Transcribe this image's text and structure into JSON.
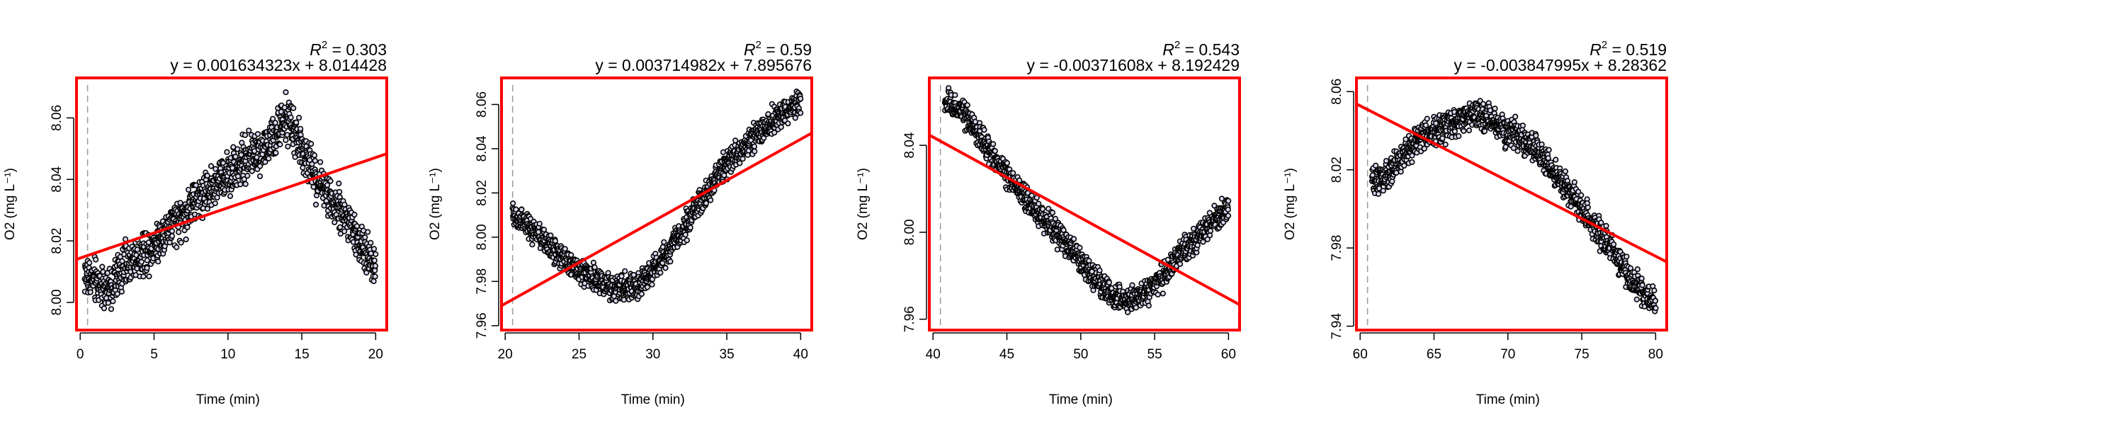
{
  "colors": {
    "frame": "#ff0000",
    "fit_line": "#ff0000",
    "point_fill": "#d8d8ee",
    "point_edge": "#000000",
    "axis": "#000000",
    "dashed_marker": "#9a9a9a",
    "background": "#ffffff"
  },
  "chart_data": [
    {
      "type": "scatter",
      "r2_text": "0.303",
      "equation": "y = 0.001634323x + 8.014428",
      "xlabel": "Time (min)",
      "ylabel": "O2 (mg L⁻¹)",
      "xlim": [
        -0.25,
        20.75
      ],
      "ylim": [
        7.991,
        8.073
      ],
      "xticks": [
        0,
        5,
        10,
        15,
        20
      ],
      "yticks": [
        8.0,
        8.02,
        8.04,
        8.06
      ],
      "dashed_x": 0.5,
      "fit": {
        "slope": 0.001634323,
        "intercept": 8.014428
      },
      "trend_points": [
        [
          0.3,
          8.009
        ],
        [
          1,
          8.007
        ],
        [
          2,
          8.004
        ],
        [
          3,
          8.012
        ],
        [
          4,
          8.015
        ],
        [
          5,
          8.019
        ],
        [
          6,
          8.024
        ],
        [
          7,
          8.028
        ],
        [
          8,
          8.034
        ],
        [
          9,
          8.038
        ],
        [
          10,
          8.042
        ],
        [
          11,
          8.046
        ],
        [
          12,
          8.049
        ],
        [
          13,
          8.052
        ],
        [
          14,
          8.06
        ],
        [
          15,
          8.05
        ],
        [
          16,
          8.04
        ],
        [
          17,
          8.034
        ],
        [
          18,
          8.028
        ],
        [
          19,
          8.018
        ],
        [
          20,
          8.012
        ]
      ],
      "noise": 0.006,
      "n_points": 1200
    },
    {
      "type": "scatter",
      "r2_text": "0.59",
      "equation": "y = 0.003714982x + 7.895676",
      "xlabel": "Time (min)",
      "ylabel": "O2 (mg L⁻¹)",
      "xlim": [
        19.75,
        40.75
      ],
      "ylim": [
        7.958,
        8.072
      ],
      "xticks": [
        20,
        25,
        30,
        35,
        40
      ],
      "yticks": [
        7.96,
        7.98,
        8.0,
        8.02,
        8.04,
        8.06
      ],
      "dashed_x": 20.5,
      "fit": {
        "slope": 0.003714982,
        "intercept": 7.895676
      },
      "trend_points": [
        [
          20.5,
          8.01
        ],
        [
          21,
          8.008
        ],
        [
          22,
          8.002
        ],
        [
          23,
          7.996
        ],
        [
          24,
          7.99
        ],
        [
          25,
          7.985
        ],
        [
          26,
          7.981
        ],
        [
          27,
          7.978
        ],
        [
          28,
          7.977
        ],
        [
          29,
          7.978
        ],
        [
          30,
          7.985
        ],
        [
          31,
          7.993
        ],
        [
          32,
          8.003
        ],
        [
          33,
          8.014
        ],
        [
          34,
          8.024
        ],
        [
          35,
          8.033
        ],
        [
          36,
          8.04
        ],
        [
          37,
          8.046
        ],
        [
          38,
          8.052
        ],
        [
          39,
          8.057
        ],
        [
          40,
          8.062
        ]
      ],
      "noise": 0.005,
      "n_points": 1200
    },
    {
      "type": "scatter",
      "r2_text": "0.543",
      "equation": "y = -0.00371608x + 8.192429",
      "xlabel": "Time (min)",
      "ylabel": "O2 (mg L⁻¹)",
      "xlim": [
        39.75,
        60.75
      ],
      "ylim": [
        7.955,
        8.071
      ],
      "xticks": [
        40,
        45,
        50,
        55,
        60
      ],
      "yticks": [
        7.96,
        8.0,
        8.04
      ],
      "dashed_x": 40.5,
      "fit": {
        "slope": -0.00371608,
        "intercept": 8.192429
      },
      "trend_points": [
        [
          40.8,
          8.058
        ],
        [
          41,
          8.06
        ],
        [
          42,
          8.055
        ],
        [
          43,
          8.046
        ],
        [
          44,
          8.036
        ],
        [
          45,
          8.027
        ],
        [
          46,
          8.018
        ],
        [
          47,
          8.01
        ],
        [
          48,
          8.003
        ],
        [
          49,
          7.995
        ],
        [
          50,
          7.987
        ],
        [
          51,
          7.979
        ],
        [
          52,
          7.972
        ],
        [
          53,
          7.968
        ],
        [
          54,
          7.97
        ],
        [
          55,
          7.976
        ],
        [
          56,
          7.983
        ],
        [
          57,
          7.992
        ],
        [
          58,
          7.998
        ],
        [
          59,
          8.005
        ],
        [
          60,
          8.012
        ]
      ],
      "noise": 0.005,
      "n_points": 1200
    },
    {
      "type": "scatter",
      "r2_text": "0.519",
      "equation": "y = -0.003847995x + 8.28362",
      "xlabel": "Time (min)",
      "ylabel": "O2 (mg L⁻¹)",
      "xlim": [
        59.75,
        80.75
      ],
      "ylim": [
        7.938,
        8.067
      ],
      "xticks": [
        60,
        65,
        70,
        75,
        80
      ],
      "yticks": [
        7.94,
        7.98,
        8.02,
        8.06
      ],
      "dashed_x": 60.5,
      "fit": {
        "slope": -0.003847995,
        "intercept": 8.28362
      },
      "trend_points": [
        [
          60.8,
          8.014
        ],
        [
          61,
          8.013
        ],
        [
          62,
          8.018
        ],
        [
          63,
          8.028
        ],
        [
          64,
          8.036
        ],
        [
          65,
          8.04
        ],
        [
          66,
          8.043
        ],
        [
          67,
          8.047
        ],
        [
          68,
          8.048
        ],
        [
          69,
          8.044
        ],
        [
          70,
          8.04
        ],
        [
          71,
          8.035
        ],
        [
          72,
          8.03
        ],
        [
          73,
          8.02
        ],
        [
          74,
          8.01
        ],
        [
          75,
          8.0
        ],
        [
          76,
          7.99
        ],
        [
          77,
          7.98
        ],
        [
          78,
          7.968
        ],
        [
          79,
          7.958
        ],
        [
          80,
          7.95
        ]
      ],
      "noise": 0.006,
      "n_points": 1200
    }
  ]
}
